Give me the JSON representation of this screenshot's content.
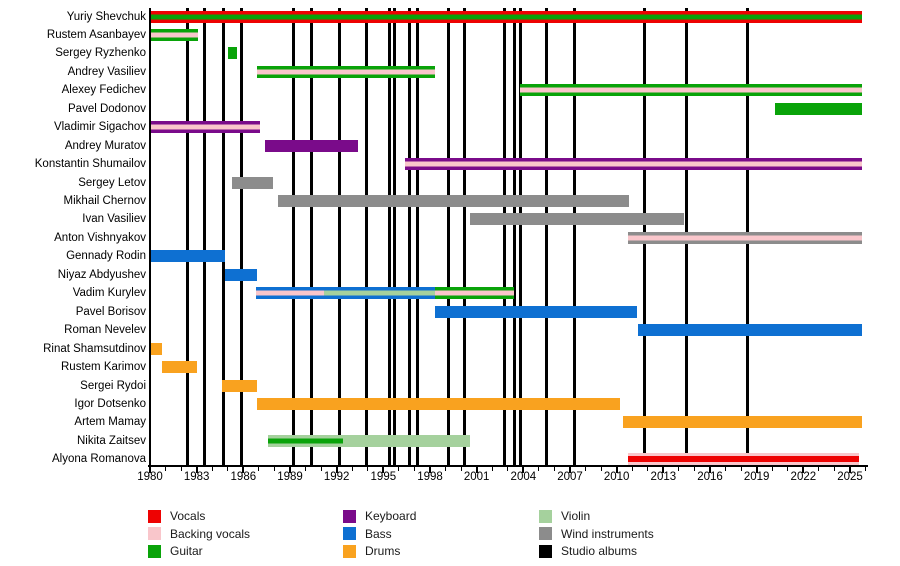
{
  "chart_data": {
    "type": "gantt-timeline",
    "title": "",
    "x_axis": {
      "min": 1980,
      "max": 2026,
      "labeled_ticks": [
        1980,
        1983,
        1986,
        1989,
        1992,
        1995,
        1998,
        2001,
        2004,
        2007,
        2010,
        2013,
        2016,
        2019,
        2022,
        2025
      ],
      "minor_tick_every": 1,
      "grid": false
    },
    "colors": {
      "vocals": "#ee0202",
      "backing": "#f9c6cb",
      "guitar": "#09a309",
      "keyboard": "#7a0b8a",
      "bass": "#0e70d2",
      "drums": "#f9a21f",
      "violin": "#a5d19d",
      "wind": "#8c8c8c",
      "albums": "#000000"
    },
    "members": [
      {
        "name": "Yuriy Shevchuk",
        "bars": [
          {
            "start": 1980.0,
            "end": 2025.8,
            "instruments": [
              "vocals",
              "guitar",
              "vocals"
            ]
          }
        ]
      },
      {
        "name": "Rustem Asanbayev",
        "bars": [
          {
            "start": 1980.0,
            "end": 1983.1,
            "instruments": [
              "guitar",
              "backing",
              "guitar"
            ]
          }
        ]
      },
      {
        "name": "Sergey Ryzhenko",
        "bars": [
          {
            "start": 1985.0,
            "end": 1985.6,
            "instruments": [
              "guitar"
            ]
          }
        ]
      },
      {
        "name": "Andrey Vasiliev",
        "bars": [
          {
            "start": 1986.9,
            "end": 1998.3,
            "instruments": [
              "guitar",
              "backing",
              "guitar"
            ]
          }
        ]
      },
      {
        "name": "Alexey Fedichev",
        "bars": [
          {
            "start": 2003.8,
            "end": 2025.8,
            "instruments": [
              "guitar",
              "backing",
              "guitar"
            ]
          }
        ]
      },
      {
        "name": "Pavel Dodonov",
        "bars": [
          {
            "start": 2020.2,
            "end": 2025.8,
            "instruments": [
              "guitar"
            ]
          }
        ]
      },
      {
        "name": "Vladimir Sigachov",
        "bars": [
          {
            "start": 1980.0,
            "end": 1987.1,
            "instruments": [
              "keyboard",
              "backing",
              "keyboard"
            ]
          }
        ]
      },
      {
        "name": "Andrey Muratov",
        "bars": [
          {
            "start": 1987.4,
            "end": 1993.4,
            "instruments": [
              "keyboard"
            ]
          }
        ]
      },
      {
        "name": "Konstantin Shumailov",
        "bars": [
          {
            "start": 1996.4,
            "end": 2025.8,
            "instruments": [
              "keyboard",
              "backing",
              "keyboard"
            ]
          }
        ]
      },
      {
        "name": "Sergey Letov",
        "bars": [
          {
            "start": 1985.3,
            "end": 1987.9,
            "instruments": [
              "wind"
            ]
          }
        ]
      },
      {
        "name": "Mikhail Chernov",
        "bars": [
          {
            "start": 1988.2,
            "end": 2010.8,
            "instruments": [
              "wind"
            ]
          }
        ]
      },
      {
        "name": "Ivan Vasiliev",
        "bars": [
          {
            "start": 2000.6,
            "end": 2014.3,
            "instruments": [
              "wind"
            ]
          }
        ]
      },
      {
        "name": "Anton Vishnyakov",
        "bars": [
          {
            "start": 2010.7,
            "end": 2025.8,
            "instruments": [
              "wind",
              "backing",
              "wind"
            ]
          }
        ]
      },
      {
        "name": "Gennady Rodin",
        "bars": [
          {
            "start": 1980.0,
            "end": 1984.8,
            "instruments": [
              "bass"
            ]
          }
        ]
      },
      {
        "name": "Niyaz Abdyushev",
        "bars": [
          {
            "start": 1984.8,
            "end": 1986.9,
            "instruments": [
              "bass"
            ]
          }
        ]
      },
      {
        "name": "Vadim Kurylev",
        "bars": [
          {
            "start": 1986.8,
            "end": 1991.2,
            "instruments": [
              "bass",
              "backing",
              "bass"
            ]
          },
          {
            "start": 1991.2,
            "end": 1998.3,
            "instruments": [
              "bass",
              "violin",
              "bass"
            ]
          },
          {
            "start": 1998.3,
            "end": 2003.4,
            "instruments": [
              "guitar",
              "backing",
              "guitar"
            ]
          }
        ]
      },
      {
        "name": "Pavel Borisov",
        "bars": [
          {
            "start": 1998.3,
            "end": 2011.3,
            "instruments": [
              "bass"
            ]
          }
        ]
      },
      {
        "name": "Roman Nevelev",
        "bars": [
          {
            "start": 2011.4,
            "end": 2025.8,
            "instruments": [
              "bass"
            ]
          }
        ]
      },
      {
        "name": "Rinat Shamsutdinov",
        "bars": [
          {
            "start": 1980.0,
            "end": 1980.8,
            "instruments": [
              "drums"
            ]
          }
        ]
      },
      {
        "name": "Rustem Karimov",
        "bars": [
          {
            "start": 1980.8,
            "end": 1983.0,
            "instruments": [
              "drums"
            ]
          }
        ]
      },
      {
        "name": "Sergei Rydoi",
        "bars": [
          {
            "start": 1984.6,
            "end": 1986.9,
            "instruments": [
              "drums"
            ]
          }
        ]
      },
      {
        "name": "Igor Dotsenko",
        "bars": [
          {
            "start": 1986.9,
            "end": 2010.2,
            "instruments": [
              "drums"
            ]
          }
        ]
      },
      {
        "name": "Artem Mamay",
        "bars": [
          {
            "start": 2010.4,
            "end": 2025.8,
            "instruments": [
              "drums"
            ]
          }
        ]
      },
      {
        "name": "Nikita Zaitsev",
        "bars": [
          {
            "start": 1987.6,
            "end": 1992.4,
            "instruments": [
              "violin",
              "guitar",
              "violin"
            ]
          },
          {
            "start": 1992.4,
            "end": 2000.6,
            "instruments": [
              "violin"
            ]
          }
        ]
      },
      {
        "name": "Alyona Romanova",
        "bars": [
          {
            "start": 2010.7,
            "end": 2025.6,
            "instruments": [
              "backing",
              "vocals",
              "backing"
            ],
            "weights": [
              25,
              50,
              25
            ]
          }
        ]
      }
    ],
    "studio_album_years": [
      1982.4,
      1983.5,
      1984.7,
      1985.9,
      1989.2,
      1990.4,
      1992.2,
      1993.9,
      1995.4,
      1995.7,
      1996.7,
      1997.2,
      1999.2,
      2000.2,
      2002.8,
      2003.4,
      2003.8,
      2005.5,
      2007.3,
      2011.8,
      2014.5,
      2018.4
    ],
    "legend": {
      "columns": [
        [
          {
            "label": "Vocals",
            "key": "vocals"
          },
          {
            "label": "Backing vocals",
            "key": "backing"
          },
          {
            "label": "Guitar",
            "key": "guitar"
          }
        ],
        [
          {
            "label": "Keyboard",
            "key": "keyboard"
          },
          {
            "label": "Bass",
            "key": "bass"
          },
          {
            "label": "Drums",
            "key": "drums"
          }
        ],
        [
          {
            "label": "Violin",
            "key": "violin"
          },
          {
            "label": "Wind instruments",
            "key": "wind"
          },
          {
            "label": "Studio albums",
            "key": "albums"
          }
        ]
      ],
      "position": "bottom"
    }
  }
}
